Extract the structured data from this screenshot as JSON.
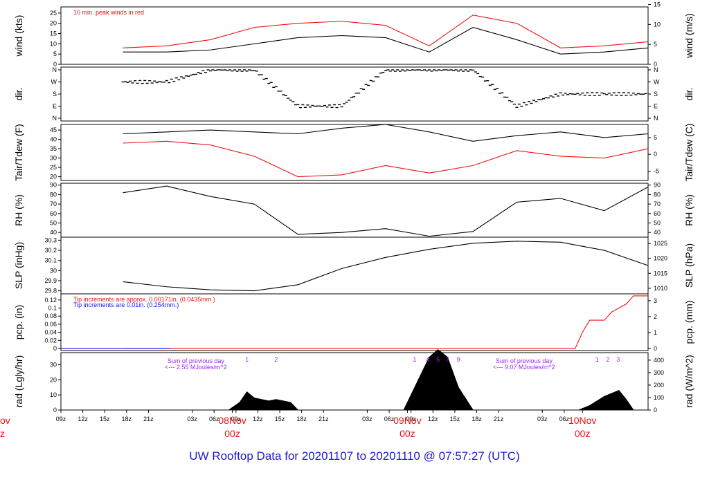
{
  "title": "UW Rooftop Data for 20201107  to  20201110 @ 07:57:27  (UTC)",
  "colors": {
    "black": "#000000",
    "red": "#ee1111",
    "blue": "#1010ee",
    "purple": "#a020f0",
    "title": "#1a1acd"
  },
  "chart_data": [
    {
      "type": "line",
      "id": "wind",
      "ylabel": "wind (kts)",
      "ylabel_right": "wind (m/s)",
      "ylim": [
        0,
        28
      ],
      "yticks": [
        0,
        5,
        10,
        15,
        20,
        25
      ],
      "yticks_right": [
        0,
        5,
        10,
        15
      ],
      "annotation": "10 min. peak winds in red",
      "x_hours": [
        0,
        6,
        12,
        18,
        24,
        30,
        36,
        42,
        48,
        54,
        60,
        66,
        72
      ],
      "series": [
        {
          "values": [
            6,
            6,
            7,
            10,
            13,
            14,
            13,
            6,
            18,
            12,
            5,
            6,
            8
          ],
          "color": "#000000"
        },
        {
          "values": [
            8,
            9,
            12,
            18,
            20,
            21,
            19,
            9,
            24,
            20,
            8,
            9,
            11
          ],
          "color": "#ee1111"
        }
      ]
    },
    {
      "type": "scatter",
      "id": "dir",
      "ylabel": "dir.",
      "ylabel_right": "dir.",
      "yticks": [
        "N",
        "W",
        "S",
        "E",
        "N"
      ],
      "x_hours": [
        0,
        6,
        12,
        18,
        24,
        30,
        36,
        42,
        48,
        54,
        60,
        66,
        72
      ],
      "values": [
        "W",
        "W",
        "N",
        "N",
        "E",
        "E",
        "N",
        "N",
        "N",
        "E",
        "S",
        "S",
        "S"
      ]
    },
    {
      "type": "line",
      "id": "temp",
      "ylabel": "Tair/Tdew (F)",
      "ylabel_right": "Tair/Tdew (C)",
      "ylim": [
        18,
        48
      ],
      "yticks": [
        20,
        25,
        30,
        35,
        40,
        45
      ],
      "yticks_right": [
        -5,
        0,
        5
      ],
      "x_hours": [
        0,
        6,
        12,
        18,
        24,
        30,
        36,
        42,
        48,
        54,
        60,
        66,
        72
      ],
      "series": [
        {
          "name": "Tair",
          "values": [
            43,
            44,
            45,
            44,
            43,
            46,
            48,
            44,
            39,
            42,
            44,
            41,
            43
          ],
          "color": "#000000"
        },
        {
          "name": "Tdew",
          "values": [
            38,
            39,
            37,
            31,
            20,
            21,
            26,
            22,
            26,
            34,
            31,
            30,
            35
          ],
          "color": "#ee1111"
        }
      ]
    },
    {
      "type": "line",
      "id": "rh",
      "ylabel": "RH (%)",
      "ylabel_right": "RH (%)",
      "ylim": [
        35,
        92
      ],
      "yticks": [
        40,
        50,
        60,
        70,
        80,
        90
      ],
      "yticks_right": [
        40,
        50,
        60,
        70,
        80,
        90
      ],
      "x_hours": [
        0,
        6,
        12,
        18,
        24,
        30,
        36,
        42,
        48,
        54,
        60,
        66,
        72
      ],
      "series": [
        {
          "values": [
            82,
            89,
            78,
            70,
            38,
            40,
            44,
            36,
            41,
            72,
            76,
            63,
            88
          ],
          "color": "#000000"
        }
      ]
    },
    {
      "type": "line",
      "id": "slp",
      "ylabel": "SLP (inHg)",
      "ylabel_right": "SLP (hPa)",
      "ylim": [
        29.77,
        30.33
      ],
      "yticks": [
        29.8,
        29.9,
        30.0,
        30.1,
        30.2,
        30.3
      ],
      "yticks_right": [
        1010,
        1015,
        1020,
        1025
      ],
      "x_hours": [
        0,
        6,
        12,
        18,
        24,
        30,
        36,
        42,
        48,
        54,
        60,
        66,
        72
      ],
      "series": [
        {
          "values": [
            29.89,
            29.84,
            29.81,
            29.8,
            29.86,
            30.02,
            30.13,
            30.21,
            30.27,
            30.29,
            30.28,
            30.2,
            30.05
          ],
          "color": "#000000"
        }
      ]
    },
    {
      "type": "line",
      "id": "pcp",
      "ylabel": "pcp. (in)",
      "ylabel_right": "pcp. (mm)",
      "ylim": [
        -0.005,
        0.135
      ],
      "yticks": [
        0,
        0.02,
        0.04,
        0.06,
        0.08,
        0.1,
        0.12
      ],
      "yticks_right": [
        0,
        1,
        2,
        3
      ],
      "annotations": [
        "Tip increments are approx. 0.00171in. (0.0435mm.)",
        "Tip increments are 0.01in. (0.254mm.)"
      ],
      "x_hours": [
        0,
        62,
        63,
        64,
        66,
        67,
        69,
        70,
        72
      ],
      "series": [
        {
          "values": [
            0,
            0,
            0.04,
            0.07,
            0.07,
            0.09,
            0.11,
            0.13,
            0.13
          ],
          "color": "#ee1111"
        }
      ]
    },
    {
      "type": "area",
      "id": "rad",
      "ylabel": "rad (Lgly/hr)",
      "ylabel_right": "rad (W/m^2)",
      "ylim": [
        0,
        38
      ],
      "yticks": [
        0,
        10,
        20,
        30
      ],
      "yticks_right": [
        0,
        100,
        200,
        300,
        400
      ],
      "notes": [
        "Sum of previous day",
        "<--- 2.55 MJoules/m^2",
        "Sum of previous day",
        "<--- 9.07 MJoules/m^2"
      ],
      "marks": [
        {
          "label": "1",
          "x": 17
        },
        {
          "label": "2",
          "x": 21
        },
        {
          "label": "1",
          "x": 40
        },
        {
          "label": "4",
          "x": 41.8
        },
        {
          "label": "5",
          "x": 43.2
        },
        {
          "label": "7",
          "x": 44.5
        },
        {
          "label": "9",
          "x": 46
        },
        {
          "label": "1",
          "x": 65
        },
        {
          "label": "2",
          "x": 66.5
        },
        {
          "label": "3",
          "x": 67.9
        }
      ],
      "x_hours": [
        0,
        14.5,
        16,
        17,
        18,
        19,
        20,
        21,
        22,
        23,
        24,
        38.5,
        40,
        42,
        43.2,
        44.5,
        46,
        48,
        62.5,
        64,
        65,
        66,
        67,
        68,
        69,
        70,
        72
      ],
      "values": [
        0,
        0,
        5,
        12,
        8,
        7,
        6,
        7,
        6,
        5,
        0,
        0,
        15,
        35,
        40,
        35,
        15,
        0,
        0,
        3,
        6,
        9,
        11,
        13,
        7,
        0,
        0
      ]
    }
  ],
  "xaxis": {
    "ticks": [
      "09z",
      "12z",
      "15z",
      "18z",
      "21z",
      "03z",
      "06z",
      "09z",
      "12z",
      "15z",
      "18z",
      "21z",
      "03z",
      "06z",
      "09z",
      "12z",
      "15z",
      "18z",
      "21z",
      "03z",
      "06z"
    ],
    "day_labels": [
      {
        "top": "08Nov",
        "bottom": "00z"
      },
      {
        "top": "09Nov",
        "bottom": "00z"
      },
      {
        "top": "10Nov",
        "bottom": "00z"
      }
    ],
    "cut_labels": {
      "top": "ov",
      "bottom": "z"
    }
  }
}
